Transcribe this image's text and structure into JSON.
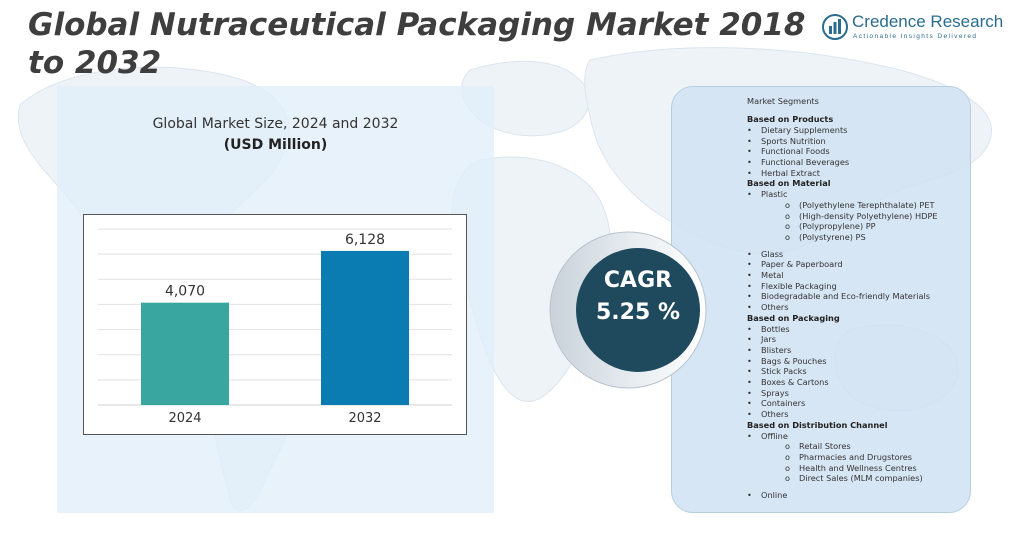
{
  "header": {
    "title": "Global Nutraceutical Packaging Market 2018 to 2032",
    "logo_name": "Credence Research",
    "logo_tagline": "Actionable Insights Delivered"
  },
  "chart_data": {
    "type": "bar",
    "title": "Global Market Size, 2024 and 2032",
    "subtitle": "(USD Million)",
    "categories": [
      "2024",
      "2032"
    ],
    "values": [
      4070,
      6128
    ],
    "value_labels": [
      "4,070",
      "6,128"
    ],
    "colors": [
      "#3aa6a0",
      "#0a7cb2"
    ],
    "ylim": [
      0,
      7000
    ],
    "grid": true
  },
  "cagr": {
    "label": "CAGR",
    "value": "5.25 %"
  },
  "segments": {
    "heading": "Market Segments",
    "groups": [
      {
        "title": "Based on Products",
        "items": [
          {
            "label": "Dietary Supplements"
          },
          {
            "label": "Sports Nutrition"
          },
          {
            "label": "Functional Foods"
          },
          {
            "label": "Functional Beverages"
          },
          {
            "label": "Herbal Extract"
          }
        ]
      },
      {
        "title": "Based on Material",
        "items": [
          {
            "label": "Plastic",
            "sub": [
              "(Polyethylene Terephthalate) PET",
              "(High-density Polyethylene) HDPE",
              "(Polypropylene) PP",
              "(Polystyrene) PS"
            ]
          },
          {
            "label": "Glass"
          },
          {
            "label": "Paper & Paperboard"
          },
          {
            "label": "Metal"
          },
          {
            "label": "Flexible Packaging"
          },
          {
            "label": "Biodegradable and Eco-friendly Materials"
          },
          {
            "label": "Others"
          }
        ]
      },
      {
        "title": "Based on Packaging",
        "items": [
          {
            "label": "Bottles"
          },
          {
            "label": "Jars"
          },
          {
            "label": "Blisters"
          },
          {
            "label": "Bags & Pouches"
          },
          {
            "label": "Stick Packs"
          },
          {
            "label": "Boxes & Cartons"
          },
          {
            "label": "Sprays"
          },
          {
            "label": "Containers"
          },
          {
            "label": "Others"
          }
        ]
      },
      {
        "title": "Based on Distribution Channel",
        "items": [
          {
            "label": "Offline",
            "sub": [
              "Retail Stores",
              "Pharmacies and Drugstores",
              "Health and Wellness Centres",
              "Direct Sales (MLM companies)"
            ]
          },
          {
            "label": "Online"
          }
        ]
      }
    ]
  }
}
